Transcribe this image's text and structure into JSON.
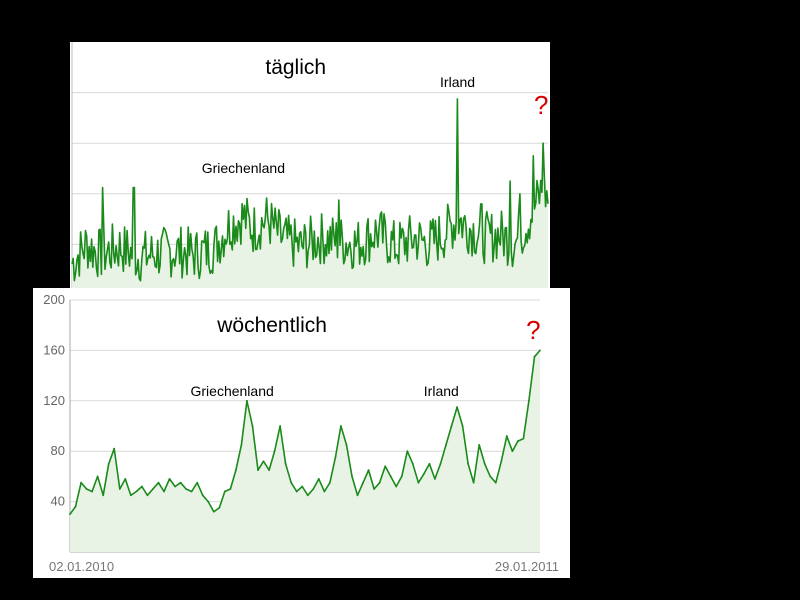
{
  "chart_data": [
    {
      "type": "area",
      "title": "täglich",
      "x_range": [
        "",
        ""
      ],
      "ylim": [
        0,
        200
      ],
      "grid": true,
      "line_color": "#1a8a1a",
      "fill_color": "#e8f3e6",
      "annotations": [
        {
          "text": "Griechenland",
          "x_frac": 0.36
        },
        {
          "text": "Irland",
          "x_frac": 0.81
        },
        {
          "text": "?",
          "x_frac": 0.99,
          "color": "#d40000"
        }
      ],
      "anchors": [
        [
          0,
          25
        ],
        [
          0.03,
          40
        ],
        [
          0.06,
          32
        ],
        [
          0.1,
          38
        ],
        [
          0.14,
          30
        ],
        [
          0.18,
          33
        ],
        [
          0.22,
          35
        ],
        [
          0.26,
          32
        ],
        [
          0.3,
          38
        ],
        [
          0.33,
          55
        ],
        [
          0.36,
          62
        ],
        [
          0.38,
          52
        ],
        [
          0.41,
          60
        ],
        [
          0.44,
          45
        ],
        [
          0.48,
          38
        ],
        [
          0.52,
          45
        ],
        [
          0.56,
          43
        ],
        [
          0.6,
          40
        ],
        [
          0.64,
          50
        ],
        [
          0.68,
          38
        ],
        [
          0.72,
          45
        ],
        [
          0.75,
          40
        ],
        [
          0.78,
          48
        ],
        [
          0.81,
          60
        ],
        [
          0.84,
          52
        ],
        [
          0.87,
          45
        ],
        [
          0.9,
          48
        ],
        [
          0.93,
          40
        ],
        [
          0.96,
          60
        ],
        [
          0.99,
          85
        ],
        [
          1.0,
          75
        ]
      ],
      "spikes": [
        {
          "x": 0.065,
          "y": 85
        },
        {
          "x": 0.13,
          "y": 85
        },
        {
          "x": 0.56,
          "y": 75
        },
        {
          "x": 0.81,
          "y": 155
        },
        {
          "x": 0.86,
          "y": 72
        },
        {
          "x": 0.92,
          "y": 90
        },
        {
          "x": 0.94,
          "y": 80
        },
        {
          "x": 0.97,
          "y": 110
        },
        {
          "x": 0.99,
          "y": 120
        }
      ]
    },
    {
      "type": "area",
      "title": "wöchentlich",
      "x_range": [
        "02.01.2010",
        "29.01.2011"
      ],
      "ylim": [
        0,
        200
      ],
      "yticks": [
        "40",
        "80",
        "120",
        "160",
        "200"
      ],
      "ytick_values": [
        40,
        80,
        120,
        160,
        200
      ],
      "grid": true,
      "line_color": "#1a8a1a",
      "fill_color": "#e8f3e6",
      "annotations": [
        {
          "text": "Griechenland",
          "x_frac": 0.345
        },
        {
          "text": "Irland",
          "x_frac": 0.79
        },
        {
          "text": "?",
          "x_frac": 0.99,
          "color": "#d40000"
        }
      ],
      "values": [
        30,
        36,
        55,
        50,
        48,
        60,
        45,
        70,
        82,
        50,
        58,
        45,
        48,
        52,
        45,
        50,
        55,
        48,
        58,
        52,
        55,
        50,
        48,
        55,
        45,
        40,
        32,
        35,
        48,
        50,
        65,
        85,
        120,
        100,
        65,
        72,
        65,
        80,
        100,
        70,
        55,
        48,
        52,
        45,
        50,
        58,
        48,
        55,
        75,
        100,
        85,
        60,
        45,
        55,
        65,
        50,
        55,
        68,
        60,
        52,
        60,
        80,
        70,
        55,
        62,
        70,
        58,
        70,
        85,
        100,
        115,
        100,
        70,
        55,
        85,
        70,
        60,
        55,
        72,
        92,
        80,
        88,
        90,
        120,
        155,
        160
      ]
    }
  ]
}
